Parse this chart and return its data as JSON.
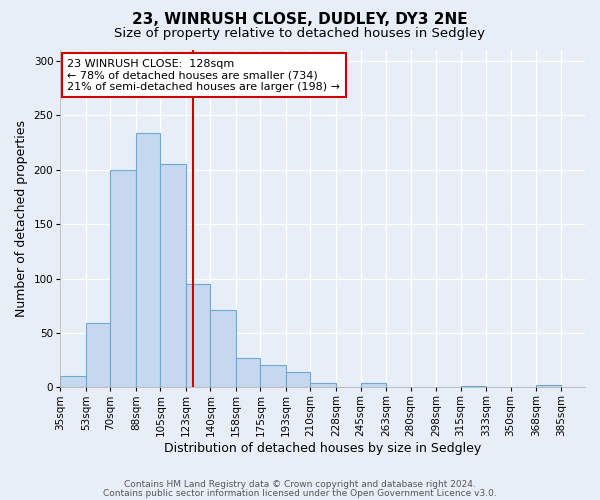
{
  "title": "23, WINRUSH CLOSE, DUDLEY, DY3 2NE",
  "subtitle": "Size of property relative to detached houses in Sedgley",
  "xlabel": "Distribution of detached houses by size in Sedgley",
  "ylabel": "Number of detached properties",
  "bar_edges": [
    35,
    53,
    70,
    88,
    105,
    123,
    140,
    158,
    175,
    193,
    210,
    228,
    245,
    263,
    280,
    298,
    315,
    333,
    350,
    368,
    385
  ],
  "bar_values": [
    10,
    59,
    200,
    234,
    205,
    95,
    71,
    27,
    21,
    14,
    4,
    0,
    4,
    0,
    0,
    0,
    1,
    0,
    0,
    2,
    0
  ],
  "bar_color": "#c5d8f0",
  "bar_edge_color": "#6aaad4",
  "vline_x": 128,
  "vline_color": "#cc0000",
  "annotation_text": "23 WINRUSH CLOSE:  128sqm\n← 78% of detached houses are smaller (734)\n21% of semi-detached houses are larger (198) →",
  "annotation_box_color": "#ffffff",
  "annotation_box_edge": "#cc0000",
  "ylim": [
    0,
    310
  ],
  "yticks": [
    0,
    50,
    100,
    150,
    200,
    250,
    300
  ],
  "tick_labels": [
    "35sqm",
    "53sqm",
    "70sqm",
    "88sqm",
    "105sqm",
    "123sqm",
    "140sqm",
    "158sqm",
    "175sqm",
    "193sqm",
    "210sqm",
    "228sqm",
    "245sqm",
    "263sqm",
    "280sqm",
    "298sqm",
    "315sqm",
    "333sqm",
    "350sqm",
    "368sqm",
    "385sqm"
  ],
  "footer1": "Contains HM Land Registry data © Crown copyright and database right 2024.",
  "footer2": "Contains public sector information licensed under the Open Government Licence v3.0.",
  "background_color": "#e8eef8",
  "grid_color": "#ffffff",
  "title_fontsize": 11,
  "subtitle_fontsize": 9.5,
  "axis_label_fontsize": 9,
  "tick_fontsize": 7.5,
  "footer_fontsize": 6.5,
  "annot_fontsize": 8
}
